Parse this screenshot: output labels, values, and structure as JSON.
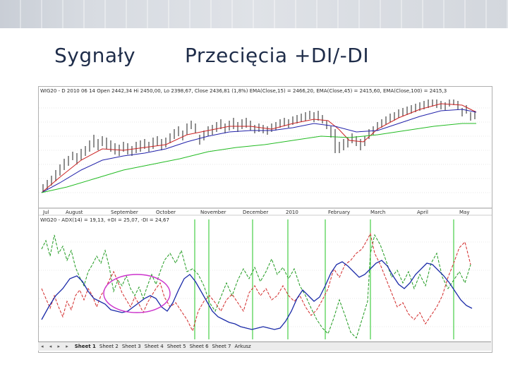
{
  "slide": {
    "title_left": "Sygnały",
    "title_right": "Przecięcia +DI/-DI"
  },
  "colors": {
    "price": "#222222",
    "ema_fast": "#cc2222",
    "ema_mid": "#2222aa",
    "ema_slow": "#22bb22",
    "adx": "#1a2aa8",
    "plus_di": "#1f9a1f",
    "minus_di": "#d22a2a",
    "signal_line": "#22c422",
    "circle": "#cc33cc"
  },
  "price_panel": {
    "header": "WIG20 - D 2010 06 14 Open 2442,34 Hi 2450,00, Lo 2398,67, Close 2436,81 (1,8%) EMA(Close,15) = 2466,20, EMA(Close,45) = 2415,60, EMA(Close,100) = 2415,3",
    "months": [
      "Jul",
      "August",
      "September",
      "October",
      "November",
      "December",
      "2010",
      "February",
      "March",
      "April",
      "May"
    ]
  },
  "indicator_panel": {
    "header": "WIG20 - ADX(14) = 19,13, +DI = 25,07, -DI = 24,67"
  },
  "sheet_tabs": {
    "nav": "◂ ◂ ▸ ▸",
    "tabs": [
      "Sheet 1",
      "Sheet 2",
      "Sheet 3",
      "Sheet 4",
      "Sheet 5",
      "Sheet 6",
      "Sheet 7",
      "Arkusz"
    ]
  }
}
